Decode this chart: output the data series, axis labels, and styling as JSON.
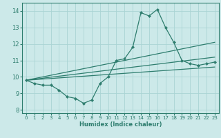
{
  "xlabel": "Humidex (Indice chaleur)",
  "ylabel": "",
  "bg_color": "#cce9e9",
  "grid_color": "#aad4d4",
  "line_color": "#2e7d6e",
  "xlim": [
    -0.5,
    23.5
  ],
  "ylim": [
    7.8,
    14.5
  ],
  "yticks": [
    8,
    9,
    10,
    11,
    12,
    13,
    14
  ],
  "xticks": [
    0,
    1,
    2,
    3,
    4,
    5,
    6,
    7,
    8,
    9,
    10,
    11,
    12,
    13,
    14,
    15,
    16,
    17,
    18,
    19,
    20,
    21,
    22,
    23
  ],
  "series": [
    {
      "x": [
        0,
        1,
        2,
        3,
        4,
        5,
        6,
        7,
        8,
        9,
        10,
        11,
        12,
        13,
        14,
        15,
        16,
        17,
        18,
        19,
        20,
        21,
        22,
        23
      ],
      "y": [
        9.8,
        9.6,
        9.5,
        9.5,
        9.2,
        8.8,
        8.7,
        8.4,
        8.6,
        9.6,
        10.0,
        11.0,
        11.1,
        11.8,
        13.9,
        13.7,
        14.1,
        13.0,
        12.1,
        11.0,
        10.8,
        10.7,
        10.8,
        10.9
      ]
    },
    {
      "x": [
        0,
        23
      ],
      "y": [
        9.8,
        12.1
      ]
    },
    {
      "x": [
        0,
        23
      ],
      "y": [
        9.8,
        11.2
      ]
    },
    {
      "x": [
        0,
        23
      ],
      "y": [
        9.8,
        10.6
      ]
    }
  ]
}
